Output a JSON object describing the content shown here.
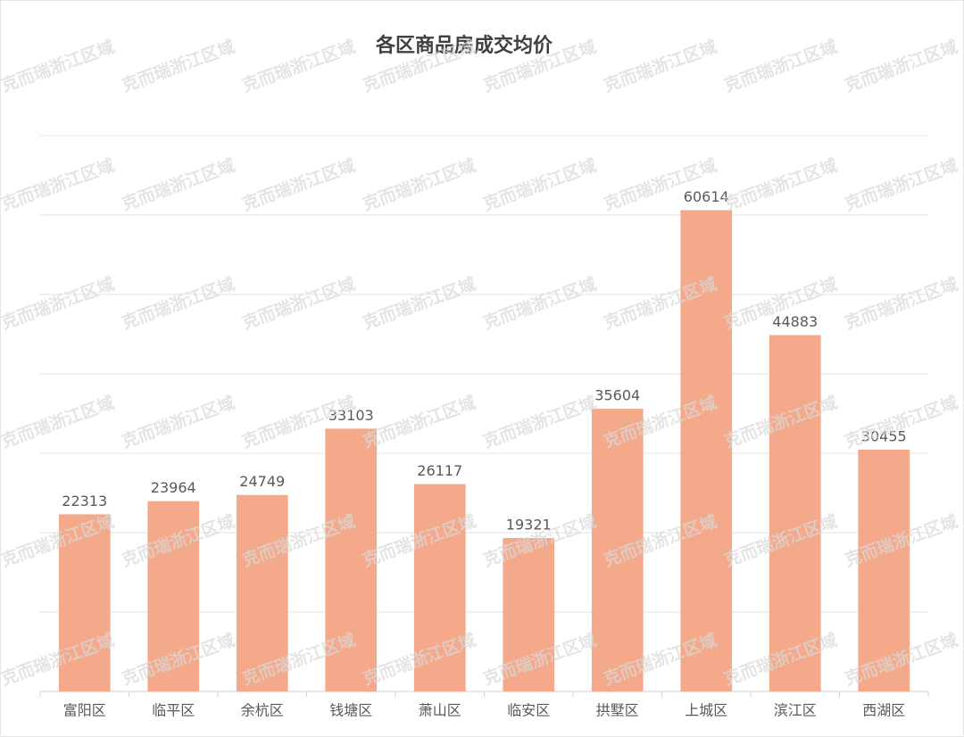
{
  "chart_data": {
    "type": "bar",
    "title": "各区商品房成交均价",
    "categories": [
      "富阳区",
      "临平区",
      "余杭区",
      "钱塘区",
      "萧山区",
      "临安区",
      "拱墅区",
      "上城区",
      "滨江区",
      "西湖区"
    ],
    "values": [
      22313,
      23964,
      24749,
      33103,
      26117,
      19321,
      35604,
      60614,
      44883,
      30455
    ],
    "color": "#f4a98a",
    "ylim": [
      0,
      70000
    ],
    "yticks": [
      0,
      10000,
      20000,
      30000,
      40000,
      50000,
      60000,
      70000
    ],
    "show_ytick_labels": false,
    "grid": true,
    "value_labels_shown": true,
    "watermark": "克而瑞浙江区域"
  }
}
